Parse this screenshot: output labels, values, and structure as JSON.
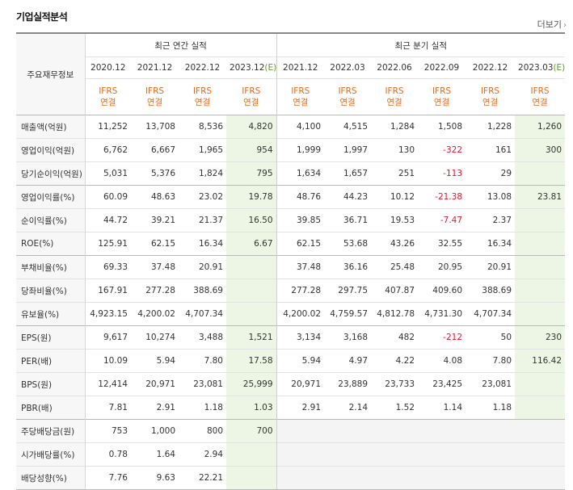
{
  "title": "기업실적분석",
  "more_link": "더보기",
  "headers": {
    "label_col": "주요재무정보",
    "annual": "최근 연간 실적",
    "quarterly": "최근 분기 실적",
    "annual_periods": [
      "2020.12",
      "2021.12",
      "2022.12",
      "2023.12"
    ],
    "annual_estimate_tag": "(E)",
    "quarter_periods": [
      "2021.12",
      "2022.03",
      "2022.06",
      "2022.09",
      "2022.12",
      "2023.03"
    ],
    "quarter_estimate_tag": "(E)",
    "ifrs_line1": "IFRS",
    "ifrs_line2": "연결"
  },
  "rows": [
    {
      "label": "매출액(억원)",
      "values": [
        "11,252",
        "13,708",
        "8,536",
        "4,820",
        "4,100",
        "4,515",
        "1,284",
        "1,508",
        "1,228",
        "1,260"
      ]
    },
    {
      "label": "영업이익(억원)",
      "values": [
        "6,762",
        "6,667",
        "1,965",
        "954",
        "1,999",
        "1,997",
        "130",
        "-322",
        "161",
        "300"
      ]
    },
    {
      "label": "당기순이익(억원)",
      "values": [
        "5,031",
        "5,376",
        "1,824",
        "795",
        "1,634",
        "1,657",
        "251",
        "-113",
        "29",
        ""
      ]
    },
    {
      "label": "영업이익률(%)",
      "values": [
        "60.09",
        "48.63",
        "23.02",
        "19.78",
        "48.76",
        "44.23",
        "10.12",
        "-21.38",
        "13.08",
        "23.81"
      ]
    },
    {
      "label": "순이익률(%)",
      "values": [
        "44.72",
        "39.21",
        "21.37",
        "16.50",
        "39.85",
        "36.71",
        "19.53",
        "-7.47",
        "2.37",
        ""
      ]
    },
    {
      "label": "ROE(%)",
      "values": [
        "125.91",
        "62.15",
        "16.34",
        "6.67",
        "62.15",
        "53.68",
        "43.26",
        "32.55",
        "16.34",
        ""
      ]
    },
    {
      "label": "부채비율(%)",
      "values": [
        "69.33",
        "37.48",
        "20.91",
        "",
        "37.48",
        "36.16",
        "25.48",
        "20.95",
        "20.91",
        ""
      ]
    },
    {
      "label": "당좌비율(%)",
      "values": [
        "167.91",
        "277.28",
        "388.69",
        "",
        "277.28",
        "297.75",
        "407.87",
        "409.60",
        "388.69",
        ""
      ]
    },
    {
      "label": "유보율(%)",
      "values": [
        "4,923.15",
        "4,200.02",
        "4,707.34",
        "",
        "4,200.02",
        "4,759.57",
        "4,812.78",
        "4,731.30",
        "4,707.34",
        ""
      ]
    },
    {
      "label": "EPS(원)",
      "values": [
        "9,617",
        "10,274",
        "3,488",
        "1,521",
        "3,134",
        "3,168",
        "482",
        "-212",
        "50",
        "230"
      ]
    },
    {
      "label": "PER(배)",
      "values": [
        "10.09",
        "5.94",
        "7.80",
        "17.58",
        "5.94",
        "4.97",
        "4.22",
        "4.08",
        "7.80",
        "116.42"
      ]
    },
    {
      "label": "BPS(원)",
      "values": [
        "12,414",
        "20,971",
        "23,081",
        "25,999",
        "20,971",
        "23,889",
        "23,733",
        "23,425",
        "23,081",
        ""
      ]
    },
    {
      "label": "PBR(배)",
      "values": [
        "7.81",
        "2.91",
        "1.18",
        "1.03",
        "2.91",
        "2.14",
        "1.52",
        "1.14",
        "1.18",
        ""
      ]
    },
    {
      "label": "주당배당금(원)",
      "values": [
        "753",
        "1,000",
        "800",
        "700",
        "",
        "",
        "",
        "",
        "",
        ""
      ]
    },
    {
      "label": "시가배당률(%)",
      "values": [
        "0.78",
        "1.64",
        "2.94",
        "",
        "",
        "",
        "",
        "",
        "",
        ""
      ]
    },
    {
      "label": "배당성향(%)",
      "values": [
        "7.76",
        "9.63",
        "22.21",
        "",
        "",
        "",
        "",
        "",
        "",
        ""
      ]
    }
  ]
}
